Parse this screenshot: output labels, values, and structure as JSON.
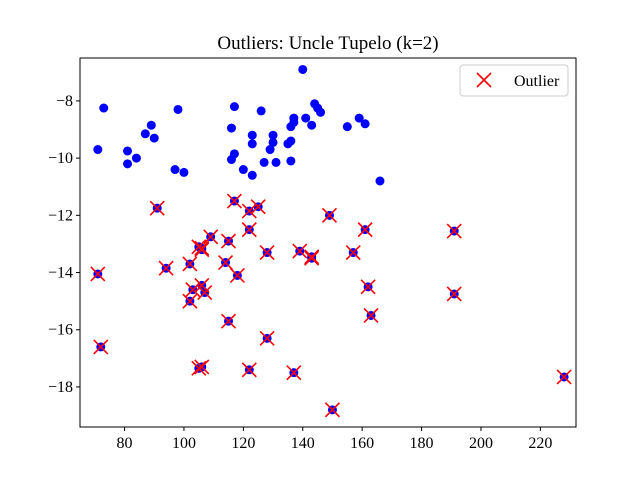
{
  "chart_data": {
    "type": "scatter",
    "title": "Outliers: Uncle Tupelo (k=2)",
    "xlabel": "",
    "ylabel": "",
    "xlim": [
      65,
      232
    ],
    "ylim": [
      -19.4,
      -6.5
    ],
    "xticks": [
      80,
      100,
      120,
      140,
      160,
      180,
      200,
      220
    ],
    "yticks": [
      -8,
      -10,
      -12,
      -14,
      -16,
      -18
    ],
    "grid": false,
    "legend_position": "top-right",
    "colors": {
      "points": "#0000ff",
      "outlier_marker": "#ff0000"
    },
    "series": [
      {
        "role": "points",
        "marker": "circle",
        "points": [
          [
            73,
            -8.25
          ],
          [
            71,
            -9.7
          ],
          [
            81,
            -9.75
          ],
          [
            81,
            -10.2
          ],
          [
            84,
            -10.0
          ],
          [
            87,
            -9.15
          ],
          [
            89,
            -8.85
          ],
          [
            90,
            -9.3
          ],
          [
            98,
            -8.3
          ],
          [
            97,
            -10.4
          ],
          [
            100,
            -10.5
          ],
          [
            117,
            -8.2
          ],
          [
            116,
            -8.95
          ],
          [
            116,
            -10.05
          ],
          [
            117,
            -9.85
          ],
          [
            120,
            -10.4
          ],
          [
            123,
            -9.2
          ],
          [
            123,
            -9.5
          ],
          [
            123,
            -10.6
          ],
          [
            126,
            -8.35
          ],
          [
            127,
            -10.15
          ],
          [
            129,
            -9.7
          ],
          [
            130,
            -9.2
          ],
          [
            130,
            -9.45
          ],
          [
            131,
            -10.15
          ],
          [
            135,
            -9.5
          ],
          [
            136,
            -9.4
          ],
          [
            136,
            -8.9
          ],
          [
            137,
            -8.75
          ],
          [
            136,
            -10.1
          ],
          [
            137,
            -8.6
          ],
          [
            140,
            -6.9
          ],
          [
            141,
            -8.6
          ],
          [
            143,
            -8.85
          ],
          [
            144,
            -8.1
          ],
          [
            145,
            -8.25
          ],
          [
            146,
            -8.4
          ],
          [
            155,
            -8.9
          ],
          [
            159,
            -8.6
          ],
          [
            161,
            -8.8
          ],
          [
            166,
            -10.8
          ],
          [
            91,
            -11.75
          ],
          [
            117,
            -11.5
          ],
          [
            122,
            -11.85
          ],
          [
            125,
            -11.7
          ],
          [
            149,
            -12.0
          ],
          [
            161,
            -12.5
          ],
          [
            191,
            -12.55
          ],
          [
            109,
            -12.75
          ],
          [
            115,
            -12.9
          ],
          [
            122,
            -12.5
          ],
          [
            105,
            -13.1
          ],
          [
            106,
            -13.2
          ],
          [
            106,
            -13.15
          ],
          [
            128,
            -13.3
          ],
          [
            139,
            -13.25
          ],
          [
            143,
            -13.5
          ],
          [
            143,
            -13.45
          ],
          [
            157,
            -13.3
          ],
          [
            71,
            -14.05
          ],
          [
            94,
            -13.85
          ],
          [
            102,
            -13.7
          ],
          [
            114,
            -13.65
          ],
          [
            118,
            -14.1
          ],
          [
            103,
            -14.6
          ],
          [
            106,
            -14.45
          ],
          [
            107,
            -14.7
          ],
          [
            102,
            -15.0
          ],
          [
            162,
            -14.5
          ],
          [
            191,
            -14.75
          ],
          [
            115,
            -15.7
          ],
          [
            163,
            -15.5
          ],
          [
            128,
            -16.3
          ],
          [
            72,
            -16.6
          ],
          [
            105,
            -17.35
          ],
          [
            106,
            -17.3
          ],
          [
            122,
            -17.4
          ],
          [
            137,
            -17.5
          ],
          [
            228,
            -17.65
          ],
          [
            150,
            -18.8
          ]
        ]
      },
      {
        "role": "outliers",
        "name": "Outlier",
        "marker": "x",
        "points": [
          [
            91,
            -11.75
          ],
          [
            117,
            -11.5
          ],
          [
            122,
            -11.85
          ],
          [
            125,
            -11.7
          ],
          [
            149,
            -12.0
          ],
          [
            161,
            -12.5
          ],
          [
            191,
            -12.55
          ],
          [
            109,
            -12.75
          ],
          [
            115,
            -12.9
          ],
          [
            122,
            -12.5
          ],
          [
            105,
            -13.1
          ],
          [
            106,
            -13.2
          ],
          [
            106,
            -13.15
          ],
          [
            128,
            -13.3
          ],
          [
            139,
            -13.25
          ],
          [
            143,
            -13.5
          ],
          [
            143,
            -13.45
          ],
          [
            157,
            -13.3
          ],
          [
            71,
            -14.05
          ],
          [
            94,
            -13.85
          ],
          [
            102,
            -13.7
          ],
          [
            114,
            -13.65
          ],
          [
            118,
            -14.1
          ],
          [
            103,
            -14.6
          ],
          [
            106,
            -14.45
          ],
          [
            107,
            -14.7
          ],
          [
            102,
            -15.0
          ],
          [
            162,
            -14.5
          ],
          [
            191,
            -14.75
          ],
          [
            115,
            -15.7
          ],
          [
            163,
            -15.5
          ],
          [
            128,
            -16.3
          ],
          [
            72,
            -16.6
          ],
          [
            105,
            -17.35
          ],
          [
            106,
            -17.3
          ],
          [
            122,
            -17.4
          ],
          [
            137,
            -17.5
          ],
          [
            228,
            -17.65
          ],
          [
            150,
            -18.8
          ]
        ]
      }
    ]
  }
}
